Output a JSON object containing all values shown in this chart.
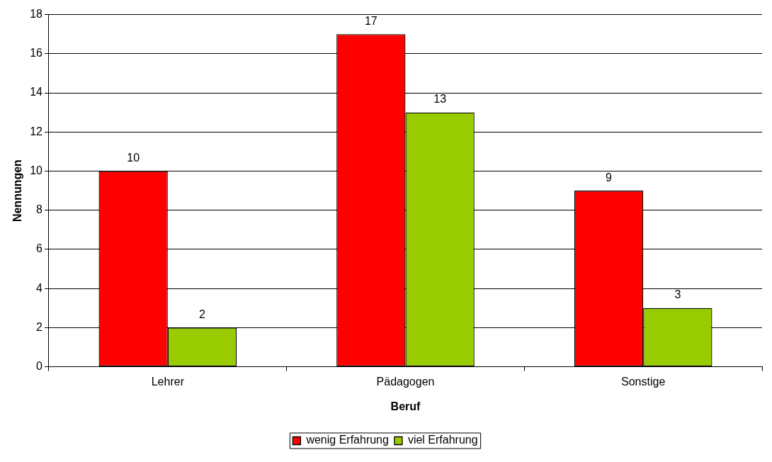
{
  "chart_data": {
    "type": "bar",
    "xlabel": "Beruf",
    "ylabel": "Nennungen",
    "categories": [
      "Lehrer",
      "Pädagogen",
      "Sonstige"
    ],
    "series": [
      {
        "name": "wenig Erfahrung",
        "color": "#ff0000",
        "values": [
          10,
          17,
          9
        ]
      },
      {
        "name": "viel Erfahrung",
        "color": "#99cc00",
        "values": [
          2,
          13,
          3
        ]
      }
    ],
    "ylim": [
      0,
      18
    ],
    "yticks": [
      0,
      2,
      4,
      6,
      8,
      10,
      12,
      14,
      16,
      18
    ],
    "grid": "y",
    "legend": "bottom",
    "data_labels": true
  }
}
